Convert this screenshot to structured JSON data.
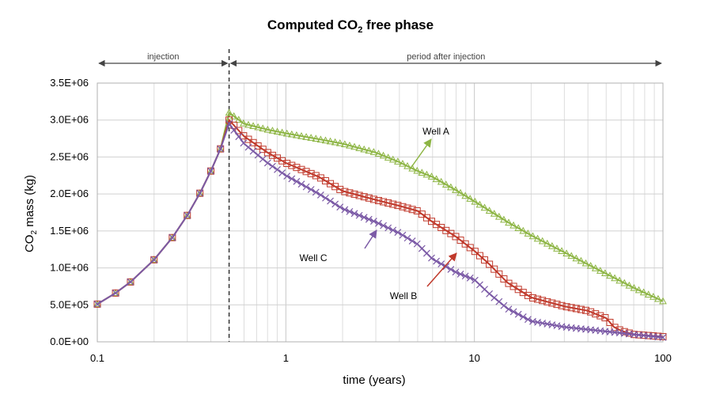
{
  "chart_data": {
    "type": "line",
    "title_main": "Computed CO",
    "title_sub": "2",
    "title_tail": " free phase",
    "xlabel": "time (years)",
    "ylabel_main": "CO",
    "ylabel_sub": "2",
    "ylabel_tail": " mass (kg)",
    "xscale": "log",
    "xlim": [
      0.1,
      100
    ],
    "ylim": [
      0,
      3500000
    ],
    "grid": true,
    "x_ticks": [
      {
        "value": 0.1,
        "label": "0.1"
      },
      {
        "value": 1,
        "label": "1"
      },
      {
        "value": 10,
        "label": "10"
      },
      {
        "value": 100,
        "label": "100"
      }
    ],
    "y_ticks": [
      {
        "value": 0,
        "label": "0.0E+00"
      },
      {
        "value": 500000,
        "label": "5.0E+05"
      },
      {
        "value": 1000000,
        "label": "1.0E+06"
      },
      {
        "value": 1500000,
        "label": "1.5E+06"
      },
      {
        "value": 2000000,
        "label": "2.0E+06"
      },
      {
        "value": 2500000,
        "label": "2.5E+06"
      },
      {
        "value": 3000000,
        "label": "3.0E+06"
      },
      {
        "value": 3500000,
        "label": "3.5E+06"
      }
    ],
    "injection_end": 0.5,
    "phases": [
      {
        "label": "injection",
        "from": 0.1,
        "to": 0.5
      },
      {
        "label": "period after injection",
        "from": 0.5,
        "to": 100
      }
    ],
    "series": [
      {
        "name": "Well A",
        "color": "#8DB544",
        "marker": "triangle",
        "x": [
          0.1,
          0.125,
          0.15,
          0.2,
          0.25,
          0.3,
          0.35,
          0.4,
          0.45,
          0.5,
          0.6,
          0.8,
          1,
          1.5,
          2,
          3,
          4,
          5,
          6,
          8,
          10,
          15,
          20,
          30,
          50,
          70,
          100
        ],
        "y": [
          510000,
          660000,
          810000,
          1110000,
          1410000,
          1710000,
          2010000,
          2310000,
          2610000,
          3100000,
          2950000,
          2870000,
          2820000,
          2740000,
          2680000,
          2560000,
          2430000,
          2310000,
          2230000,
          2050000,
          1900000,
          1620000,
          1440000,
          1210000,
          920000,
          730000,
          550000
        ]
      },
      {
        "name": "Well B",
        "color": "#C0392B",
        "marker": "square",
        "x": [
          0.1,
          0.125,
          0.15,
          0.2,
          0.25,
          0.3,
          0.35,
          0.4,
          0.45,
          0.5,
          0.6,
          0.8,
          1,
          1.5,
          2,
          3,
          4,
          5,
          6,
          8,
          10,
          12,
          15,
          20,
          30,
          40,
          50,
          55,
          60,
          70,
          100
        ],
        "y": [
          510000,
          660000,
          810000,
          1110000,
          1410000,
          1710000,
          2010000,
          2310000,
          2610000,
          3000000,
          2780000,
          2560000,
          2420000,
          2230000,
          2040000,
          1920000,
          1840000,
          1770000,
          1620000,
          1420000,
          1230000,
          1050000,
          800000,
          600000,
          480000,
          420000,
          320000,
          200000,
          150000,
          100000,
          70000
        ]
      },
      {
        "name": "Well C",
        "color": "#7B5AA6",
        "marker": "x",
        "x": [
          0.1,
          0.125,
          0.15,
          0.2,
          0.25,
          0.3,
          0.35,
          0.4,
          0.45,
          0.5,
          0.6,
          0.8,
          1,
          1.5,
          2,
          3,
          4,
          5,
          6,
          8,
          10,
          12,
          15,
          20,
          30,
          50,
          70,
          100
        ],
        "y": [
          510000,
          660000,
          810000,
          1110000,
          1410000,
          1710000,
          2010000,
          2310000,
          2610000,
          2950000,
          2680000,
          2420000,
          2250000,
          2000000,
          1800000,
          1620000,
          1470000,
          1320000,
          1120000,
          940000,
          840000,
          650000,
          450000,
          280000,
          200000,
          140000,
          100000,
          60000
        ]
      }
    ],
    "annotations": [
      {
        "text": "Well A",
        "series": "Well A"
      },
      {
        "text": "Well B",
        "series": "Well B"
      },
      {
        "text": "Well C",
        "series": "Well C"
      }
    ]
  }
}
